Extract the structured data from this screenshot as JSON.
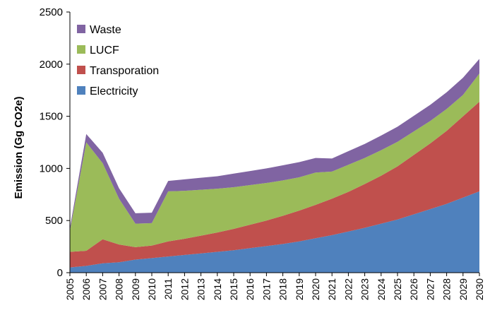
{
  "chart_data": {
    "type": "area",
    "stacked": true,
    "title": "",
    "xlabel": "",
    "ylabel": "Emission (Gg CO2e)",
    "ylim": [
      0,
      2500
    ],
    "yticks": [
      0,
      500,
      1000,
      1500,
      2000,
      2500
    ],
    "grid": false,
    "legend_position": "top-left",
    "legend_order": [
      "Waste",
      "LUCF",
      "Transporation",
      "Electricity"
    ],
    "x": [
      "2005",
      "2006",
      "2007",
      "2008",
      "2009",
      "2010",
      "2011",
      "2012",
      "2013",
      "2014",
      "2015",
      "2016",
      "2017",
      "2018",
      "2019",
      "2020",
      "2021",
      "2022",
      "2023",
      "2024",
      "2025",
      "2026",
      "2027",
      "2028",
      "2029",
      "2030"
    ],
    "series": [
      {
        "name": "Electricity",
        "color": "#4F81BD",
        "values": [
          50,
          65,
          90,
          100,
          125,
          140,
          155,
          170,
          185,
          200,
          215,
          235,
          255,
          275,
          300,
          330,
          360,
          395,
          430,
          470,
          510,
          560,
          610,
          660,
          720,
          780
        ]
      },
      {
        "name": "Transporation",
        "color": "#C0504D",
        "values": [
          150,
          145,
          230,
          170,
          120,
          120,
          145,
          155,
          170,
          185,
          205,
          225,
          245,
          270,
          295,
          320,
          350,
          380,
          420,
          460,
          510,
          570,
          630,
          700,
          780,
          860
        ]
      },
      {
        "name": "LUCF",
        "color": "#9BBB59",
        "values": [
          200,
          1040,
          730,
          440,
          225,
          215,
          480,
          460,
          440,
          420,
          400,
          380,
          360,
          340,
          320,
          310,
          260,
          260,
          250,
          245,
          235,
          225,
          215,
          210,
          205,
          270
        ]
      },
      {
        "name": "Waste",
        "color": "#8064A2",
        "values": [
          30,
          80,
          100,
          100,
          100,
          100,
          100,
          110,
          115,
          120,
          130,
          135,
          140,
          145,
          145,
          140,
          125,
          130,
          135,
          140,
          145,
          150,
          155,
          160,
          165,
          140
        ]
      }
    ]
  }
}
